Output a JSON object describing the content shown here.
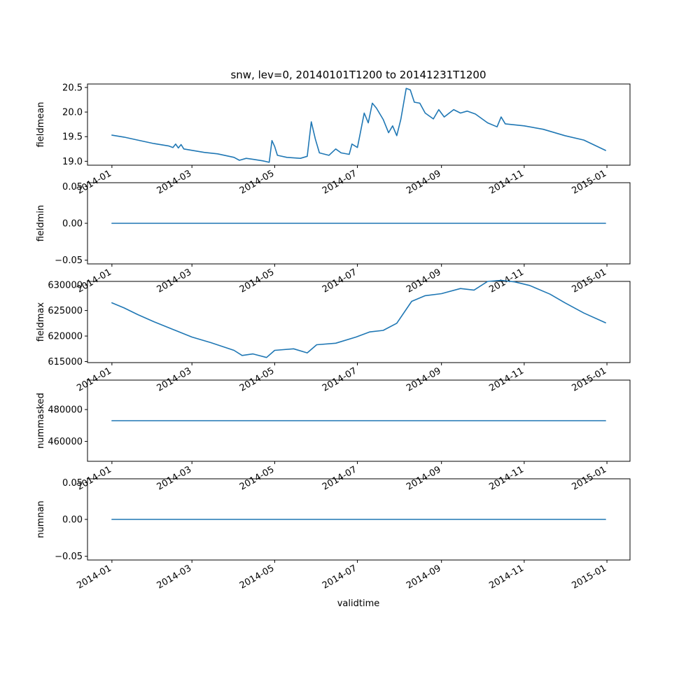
{
  "chart_data": {
    "type": "line",
    "title": "snw, lev=0, 20140101T1200 to 20141231T1200",
    "xlabel": "validtime",
    "x_range": [
      "2013-12-14",
      "2015-01-18"
    ],
    "x_ticks": [
      "2014-01",
      "2014-03",
      "2014-05",
      "2014-07",
      "2014-09",
      "2014-11",
      "2015-01"
    ],
    "series_color": "#1f77b4",
    "grid": false,
    "legend": "none",
    "panels": [
      {
        "ylabel": "fieldmean",
        "ylim": [
          18.92,
          20.57
        ],
        "yticks": [
          19.0,
          19.5,
          20.0,
          20.5
        ],
        "ytick_labels": [
          "19.0",
          "19.5",
          "20.0",
          "20.5"
        ],
        "points": [
          [
            "2014-01-01",
            19.53
          ],
          [
            "2014-01-10",
            19.49
          ],
          [
            "2014-01-20",
            19.43
          ],
          [
            "2014-02-01",
            19.36
          ],
          [
            "2014-02-12",
            19.31
          ],
          [
            "2014-02-15",
            19.28
          ],
          [
            "2014-02-17",
            19.35
          ],
          [
            "2014-02-19",
            19.27
          ],
          [
            "2014-02-21",
            19.34
          ],
          [
            "2014-02-23",
            19.25
          ],
          [
            "2014-03-10",
            19.18
          ],
          [
            "2014-03-20",
            19.15
          ],
          [
            "2014-04-01",
            19.08
          ],
          [
            "2014-04-05",
            19.02
          ],
          [
            "2014-04-10",
            19.06
          ],
          [
            "2014-04-15",
            19.04
          ],
          [
            "2014-04-22",
            19.01
          ],
          [
            "2014-04-27",
            18.98
          ],
          [
            "2014-04-29",
            19.42
          ],
          [
            "2014-05-01",
            19.3
          ],
          [
            "2014-05-03",
            19.12
          ],
          [
            "2014-05-10",
            19.08
          ],
          [
            "2014-05-20",
            19.06
          ],
          [
            "2014-05-25",
            19.1
          ],
          [
            "2014-05-28",
            19.8
          ],
          [
            "2014-05-31",
            19.45
          ],
          [
            "2014-06-03",
            19.17
          ],
          [
            "2014-06-10",
            19.12
          ],
          [
            "2014-06-15",
            19.25
          ],
          [
            "2014-06-19",
            19.17
          ],
          [
            "2014-06-25",
            19.14
          ],
          [
            "2014-06-27",
            19.35
          ],
          [
            "2014-07-01",
            19.28
          ],
          [
            "2014-07-03",
            19.55
          ],
          [
            "2014-07-06",
            19.98
          ],
          [
            "2014-07-09",
            19.78
          ],
          [
            "2014-07-12",
            20.18
          ],
          [
            "2014-07-15",
            20.08
          ],
          [
            "2014-07-20",
            19.85
          ],
          [
            "2014-07-24",
            19.58
          ],
          [
            "2014-07-27",
            19.72
          ],
          [
            "2014-07-30",
            19.52
          ],
          [
            "2014-08-02",
            19.85
          ],
          [
            "2014-08-06",
            20.48
          ],
          [
            "2014-08-09",
            20.45
          ],
          [
            "2014-08-12",
            20.2
          ],
          [
            "2014-08-16",
            20.18
          ],
          [
            "2014-08-20",
            19.98
          ],
          [
            "2014-08-26",
            19.86
          ],
          [
            "2014-08-30",
            20.05
          ],
          [
            "2014-09-03",
            19.9
          ],
          [
            "2014-09-10",
            20.05
          ],
          [
            "2014-09-15",
            19.98
          ],
          [
            "2014-09-20",
            20.02
          ],
          [
            "2014-09-26",
            19.96
          ],
          [
            "2014-10-05",
            19.78
          ],
          [
            "2014-10-12",
            19.7
          ],
          [
            "2014-10-15",
            19.9
          ],
          [
            "2014-10-18",
            19.76
          ],
          [
            "2014-11-01",
            19.72
          ],
          [
            "2014-11-15",
            19.65
          ],
          [
            "2014-12-01",
            19.52
          ],
          [
            "2014-12-15",
            19.43
          ],
          [
            "2014-12-31",
            19.22
          ]
        ]
      },
      {
        "ylabel": "fieldmin",
        "ylim": [
          -0.055,
          0.055
        ],
        "yticks": [
          -0.05,
          0.0,
          0.05
        ],
        "ytick_labels": [
          "−0.05",
          "0.00",
          "0.05"
        ],
        "points": [
          [
            "2014-01-01",
            0.0
          ],
          [
            "2014-12-31",
            0.0
          ]
        ]
      },
      {
        "ylabel": "fieldmax",
        "ylim": [
          614800,
          630700
        ],
        "yticks": [
          615000,
          620000,
          625000,
          630000
        ],
        "ytick_labels": [
          "615000",
          "620000",
          "625000",
          "630000"
        ],
        "points": [
          [
            "2014-01-01",
            626500
          ],
          [
            "2014-01-10",
            625500
          ],
          [
            "2014-01-20",
            624200
          ],
          [
            "2014-02-01",
            622800
          ],
          [
            "2014-02-15",
            621300
          ],
          [
            "2014-03-01",
            619800
          ],
          [
            "2014-03-15",
            618700
          ],
          [
            "2014-04-01",
            617200
          ],
          [
            "2014-04-07",
            616200
          ],
          [
            "2014-04-15",
            616500
          ],
          [
            "2014-04-25",
            615800
          ],
          [
            "2014-05-01",
            617200
          ],
          [
            "2014-05-15",
            617500
          ],
          [
            "2014-05-25",
            616700
          ],
          [
            "2014-06-01",
            618300
          ],
          [
            "2014-06-15",
            618600
          ],
          [
            "2014-06-30",
            619800
          ],
          [
            "2014-07-10",
            620800
          ],
          [
            "2014-07-20",
            621100
          ],
          [
            "2014-07-30",
            622500
          ],
          [
            "2014-08-10",
            626800
          ],
          [
            "2014-08-20",
            627900
          ],
          [
            "2014-09-01",
            628300
          ],
          [
            "2014-09-15",
            629300
          ],
          [
            "2014-09-25",
            629000
          ],
          [
            "2014-10-05",
            630700
          ],
          [
            "2014-10-15",
            630900
          ],
          [
            "2014-10-25",
            630600
          ],
          [
            "2014-11-05",
            629900
          ],
          [
            "2014-11-20",
            628200
          ],
          [
            "2014-12-01",
            626500
          ],
          [
            "2014-12-15",
            624500
          ],
          [
            "2014-12-31",
            622600
          ]
        ]
      },
      {
        "ylabel": "nummasked",
        "ylim": [
          447500,
          498500
        ],
        "yticks": [
          460000,
          480000
        ],
        "ytick_labels": [
          "460000",
          "480000"
        ],
        "points": [
          [
            "2014-01-01",
            473000
          ],
          [
            "2014-12-31",
            473000
          ]
        ]
      },
      {
        "ylabel": "numnan",
        "ylim": [
          -0.055,
          0.055
        ],
        "yticks": [
          -0.05,
          0.0,
          0.05
        ],
        "ytick_labels": [
          "−0.05",
          "0.00",
          "0.05"
        ],
        "points": [
          [
            "2014-01-01",
            0.0
          ],
          [
            "2014-12-31",
            0.0
          ]
        ]
      }
    ]
  }
}
